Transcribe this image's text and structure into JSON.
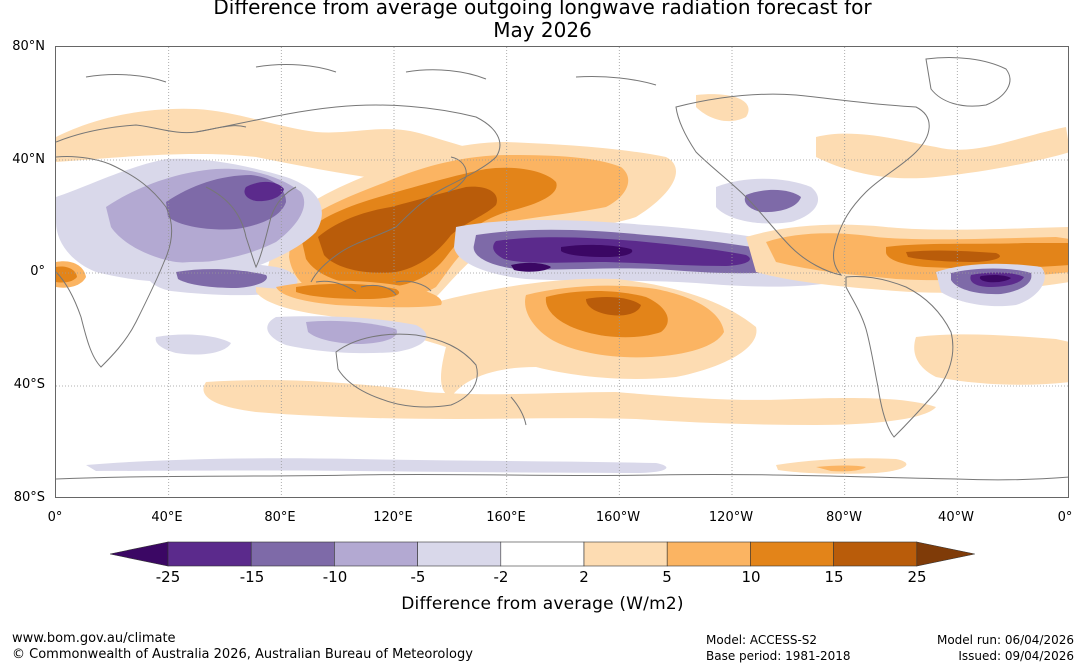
{
  "title": {
    "line1": "Difference from average outgoing longwave radiation forecast for",
    "line2": "May 2026"
  },
  "map": {
    "lat_labels": [
      "80°N",
      "40°N",
      "0°",
      "40°S",
      "80°S"
    ],
    "lon_labels": [
      "0°",
      "40°E",
      "80°E",
      "120°E",
      "160°E",
      "160°W",
      "120°W",
      "80°W",
      "40°W",
      "0°"
    ],
    "grid": "dotted",
    "colors": {
      "purple_25": "#3b0764",
      "purple_15": "#5b2a8c",
      "purple_10": "#7e6aa8",
      "purple_5": "#b3a9d2",
      "purple_2": "#d9d8ea",
      "white": "#ffffff",
      "orange_2": "#fddcb2",
      "orange_5": "#fbb462",
      "orange_10": "#e38419",
      "orange_15": "#b95c0a",
      "orange_25": "#7f3b08",
      "coast": "#777777"
    }
  },
  "colorbar": {
    "tick_labels": [
      "-25",
      "-15",
      "-10",
      "-5",
      "-2",
      "2",
      "5",
      "10",
      "15",
      "25"
    ],
    "colors": [
      "#3b0764",
      "#5b2a8c",
      "#7e6aa8",
      "#b3a9d2",
      "#d9d8ea",
      "#ffffff",
      "#fddcb2",
      "#fbb462",
      "#e38419",
      "#b95c0a",
      "#7f3b08"
    ],
    "title": "Difference from average (W/m2)"
  },
  "footer": {
    "website": "www.bom.gov.au/climate",
    "copyright": "© Commonwealth of Australia 2026, Australian Bureau of Meteorology",
    "model": "Model: ACCESS-S2",
    "base_period": "Base period: 1981-2018",
    "model_run": "Model run: 06/04/2026",
    "issued": "Issued: 09/04/2026"
  }
}
